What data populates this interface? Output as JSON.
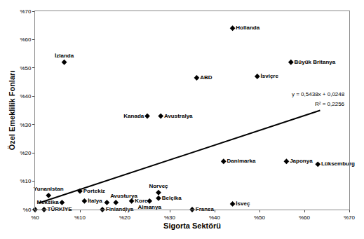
{
  "chart_data": {
    "type": "scatter",
    "x_label": "Sigorta Sektörü",
    "y_label": "Özel Emeklilik Fonları",
    "xlim": [
      0,
      70
    ],
    "ylim": [
      0,
      70
    ],
    "xticks": [
      {
        "value": 0,
        "label": "%0"
      },
      {
        "value": 10,
        "label": "%10"
      },
      {
        "value": 20,
        "label": "%20"
      },
      {
        "value": 30,
        "label": "%30"
      },
      {
        "value": 40,
        "label": "%40"
      },
      {
        "value": 50,
        "label": "%50"
      },
      {
        "value": 60,
        "label": "%60"
      },
      {
        "value": 70,
        "label": "%70"
      }
    ],
    "yticks": [
      {
        "value": 0,
        "label": "%0"
      },
      {
        "value": 10,
        "label": "%10"
      },
      {
        "value": 20,
        "label": "%20"
      },
      {
        "value": 30,
        "label": "%30"
      },
      {
        "value": 40,
        "label": "%40"
      },
      {
        "value": 50,
        "label": "%50"
      },
      {
        "value": 60,
        "label": "%60"
      },
      {
        "value": 70,
        "label": "%70"
      }
    ],
    "grid": false,
    "color": "#000000",
    "series": [
      {
        "type": "scatter",
        "marker": "diamond",
        "labels": [
          "Hollanda",
          "İzlanda",
          "Büyük Britanya",
          "İsviçre",
          "ABD",
          "Kanada",
          "Avustralya",
          "Danimarka",
          "Japonya",
          "Lüksemburg",
          "Yunanistan",
          "Meksika",
          "TÜRKİYE",
          null,
          "Portekiz",
          "İtalya",
          "Avusturya",
          null,
          "Finlandiya",
          "Kore",
          "Almanya",
          "Norveç",
          "Belçika",
          "Fransa",
          "İsveç"
        ],
        "x": [
          44,
          6.5,
          57,
          49.5,
          36,
          25,
          28,
          42,
          56,
          63,
          3,
          6,
          2,
          0,
          10,
          11,
          16,
          18,
          15,
          21.5,
          25.5,
          27.5,
          27.5,
          35,
          44
        ],
        "values": [
          64,
          52,
          52,
          47,
          46.5,
          33,
          33,
          17,
          17,
          16,
          5,
          2.5,
          0,
          0,
          6.5,
          3,
          2.5,
          2.5,
          0,
          3,
          3,
          6,
          4,
          0,
          2
        ]
      },
      {
        "type": "line",
        "line_style": "solid",
        "x": [
          0.8,
          63.5
        ],
        "values": [
          2.3,
          35
        ]
      }
    ],
    "annotations": [
      "y = 0,5438x + 0,0248",
      "R² = 0,2256"
    ]
  }
}
